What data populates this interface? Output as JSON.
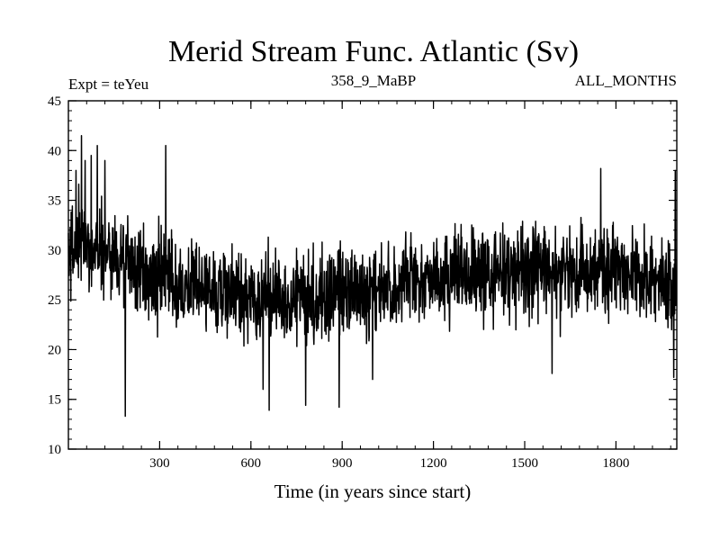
{
  "chart_data": {
    "type": "line",
    "title": "Merid Stream Func. Atlantic (Sv)",
    "subtitle_left": "Expt = teYeu",
    "subtitle_center": "358_9_MaBP",
    "subtitle_right": "ALL_MONTHS",
    "xlabel": "Time (in years since start)",
    "ylabel": "",
    "xlim": [
      0,
      2000
    ],
    "ylim": [
      10,
      45
    ],
    "xticks": [
      300,
      600,
      900,
      1200,
      1500,
      1800
    ],
    "yticks": [
      10,
      15,
      20,
      25,
      30,
      35,
      40,
      45
    ],
    "minor_x_step": 60,
    "minor_y_step": 1,
    "grid": false,
    "line_color": "#000000",
    "series": [
      {
        "sample_interval_years": 1,
        "trend_points": [
          [
            0,
            29.5
          ],
          [
            30,
            30.5
          ],
          [
            60,
            30.8
          ],
          [
            100,
            30.0
          ],
          [
            150,
            29.5
          ],
          [
            200,
            28.5
          ],
          [
            250,
            27.5
          ],
          [
            300,
            27.0
          ],
          [
            400,
            26.5
          ],
          [
            500,
            26.0
          ],
          [
            600,
            25.5
          ],
          [
            650,
            25.0
          ],
          [
            700,
            25.5
          ],
          [
            800,
            25.5
          ],
          [
            900,
            25.5
          ],
          [
            1000,
            26.0
          ],
          [
            1100,
            26.5
          ],
          [
            1200,
            27.0
          ],
          [
            1300,
            27.5
          ],
          [
            1400,
            27.8
          ],
          [
            1500,
            28.0
          ],
          [
            1600,
            27.8
          ],
          [
            1700,
            27.8
          ],
          [
            1800,
            27.8
          ],
          [
            1900,
            27.0
          ],
          [
            2000,
            26.5
          ]
        ],
        "noise_amplitude_sv": 3.0,
        "min_value": {
          "x": 187,
          "y": 13.3
        },
        "max_value": {
          "x": 43,
          "y": 41.5
        },
        "notable_peaks": [
          [
            25,
            38.0
          ],
          [
            43,
            41.5
          ],
          [
            55,
            39.0
          ],
          [
            75,
            39.5
          ],
          [
            95,
            40.5
          ],
          [
            120,
            39.0
          ],
          [
            320,
            40.5
          ],
          [
            1750,
            38.2
          ],
          [
            1995,
            38.0
          ]
        ],
        "notable_troughs": [
          [
            187,
            13.3
          ],
          [
            640,
            16.0
          ],
          [
            660,
            13.9
          ],
          [
            780,
            14.4
          ],
          [
            890,
            14.2
          ],
          [
            1000,
            17.0
          ],
          [
            1590,
            17.6
          ],
          [
            1990,
            17.2
          ]
        ]
      }
    ]
  }
}
